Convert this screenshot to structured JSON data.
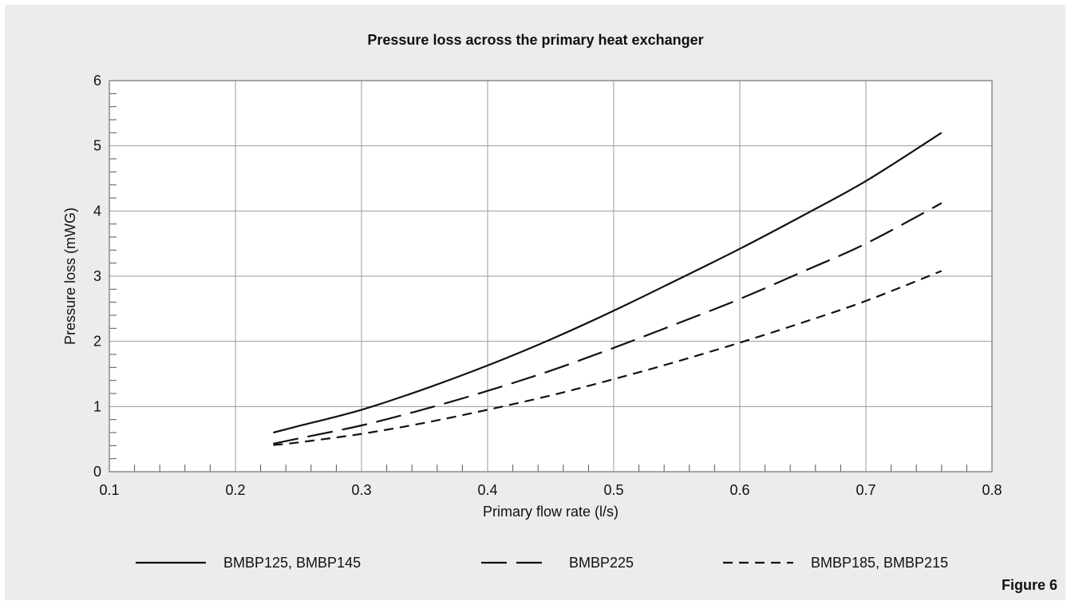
{
  "chart_data": {
    "type": "line",
    "title": "Pressure loss across the primary heat exchanger",
    "xlabel": "Primary flow rate (l/s)",
    "ylabel": "Pressure loss (mWG)",
    "xlim": [
      0.1,
      0.8
    ],
    "ylim": [
      0,
      6
    ],
    "x_ticks": [
      "0.1",
      "0.2",
      "0.3",
      "0.4",
      "0.5",
      "0.6",
      "0.7",
      "0.8"
    ],
    "y_ticks": [
      "0",
      "1",
      "2",
      "3",
      "4",
      "5",
      "6"
    ],
    "grid": true,
    "legend_position": "bottom",
    "series": [
      {
        "name": "BMBP125, BMBP145",
        "dash": "solid",
        "x": [
          0.23,
          0.25,
          0.3,
          0.35,
          0.4,
          0.45,
          0.5,
          0.55,
          0.6,
          0.65,
          0.7,
          0.76
        ],
        "y": [
          0.6,
          0.7,
          0.95,
          1.27,
          1.63,
          2.03,
          2.47,
          2.94,
          3.42,
          3.93,
          4.46,
          5.2
        ]
      },
      {
        "name": "BMBP225",
        "dash": "long-dash",
        "x": [
          0.23,
          0.25,
          0.3,
          0.35,
          0.4,
          0.45,
          0.5,
          0.55,
          0.6,
          0.65,
          0.7,
          0.76
        ],
        "y": [
          0.43,
          0.51,
          0.71,
          0.96,
          1.24,
          1.55,
          1.9,
          2.27,
          2.65,
          3.07,
          3.5,
          4.12
        ]
      },
      {
        "name": "BMBP185, BMBP215",
        "dash": "short-dash",
        "x": [
          0.23,
          0.25,
          0.3,
          0.35,
          0.4,
          0.45,
          0.5,
          0.55,
          0.6,
          0.65,
          0.7,
          0.76
        ],
        "y": [
          0.41,
          0.45,
          0.58,
          0.75,
          0.95,
          1.17,
          1.42,
          1.69,
          1.98,
          2.29,
          2.62,
          3.08
        ]
      }
    ]
  },
  "figure_label": "Figure 6"
}
